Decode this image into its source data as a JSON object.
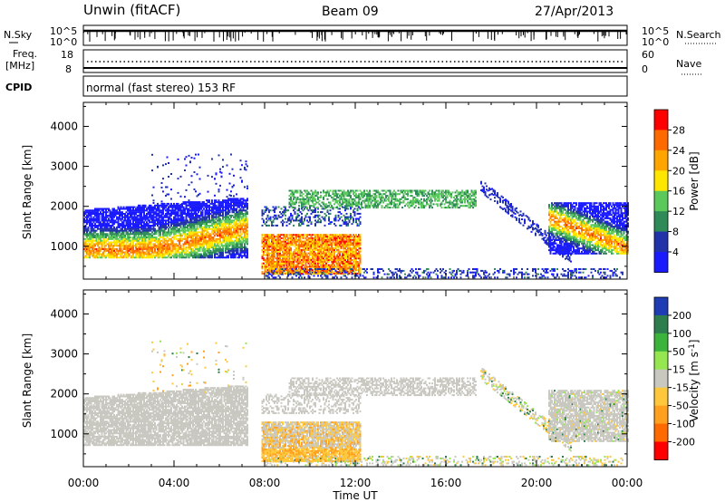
{
  "header": {
    "station": "Unwin (fitACF)",
    "beam": "Beam 09",
    "date": "27/Apr/2013"
  },
  "status_panels": {
    "nsky_label": "N.Sky",
    "nsky_ticks": [
      "10^5",
      "10^0"
    ],
    "nsearch_label": "N.Search",
    "freq_label_1": "Freq.",
    "freq_label_2": "[MHz]",
    "freq_ticks": [
      "18",
      "8"
    ],
    "nave_label": "Nave",
    "nave_ticks": [
      "60",
      "0"
    ],
    "cpid_label": "CPID",
    "cpid_text": "normal (fast stereo) 153 RF"
  },
  "chart_data": [
    {
      "type": "heatmap",
      "name": "power",
      "ylabel": "Slant Range [km]",
      "xlabel": "Time UT",
      "xlim": [
        0,
        24
      ],
      "ylim": [
        180,
        4600
      ],
      "x_ticks": [
        "00:00",
        "04:00",
        "08:00",
        "12:00",
        "16:00",
        "20:00",
        "00:00"
      ],
      "y_ticks": [
        1000,
        2000,
        3000,
        4000
      ],
      "colorbar": {
        "label": "Power [dB]",
        "ticks": [
          "28",
          "24",
          "20",
          "16",
          "12",
          "8",
          "4"
        ],
        "colors": [
          "#ff0000",
          "#ff6a00",
          "#ffa500",
          "#ffe600",
          "#5ac85a",
          "#2e8b57",
          "#2233aa",
          "#1a1aff"
        ]
      }
    },
    {
      "type": "heatmap",
      "name": "velocity",
      "ylabel": "Slant Range [km]",
      "xlabel": "Time UT",
      "xlim": [
        0,
        24
      ],
      "ylim": [
        180,
        4600
      ],
      "x_ticks": [
        "00:00",
        "04:00",
        "08:00",
        "12:00",
        "16:00",
        "20:00",
        "00:00"
      ],
      "y_ticks": [
        1000,
        2000,
        3000,
        4000
      ],
      "colorbar": {
        "label": "Velocity [m s",
        "label_sup": "-1",
        "ticks": [
          "200",
          "100",
          "50",
          "15",
          "-15",
          "-50",
          "-100",
          "-200"
        ],
        "colors": [
          "#1e3cb4",
          "#2e7d4f",
          "#3cb43c",
          "#96e650",
          "#c8c8c0",
          "#ffc83c",
          "#ffa01e",
          "#ff6a00",
          "#ff0000"
        ]
      }
    }
  ],
  "x_axis_title": "Time UT"
}
